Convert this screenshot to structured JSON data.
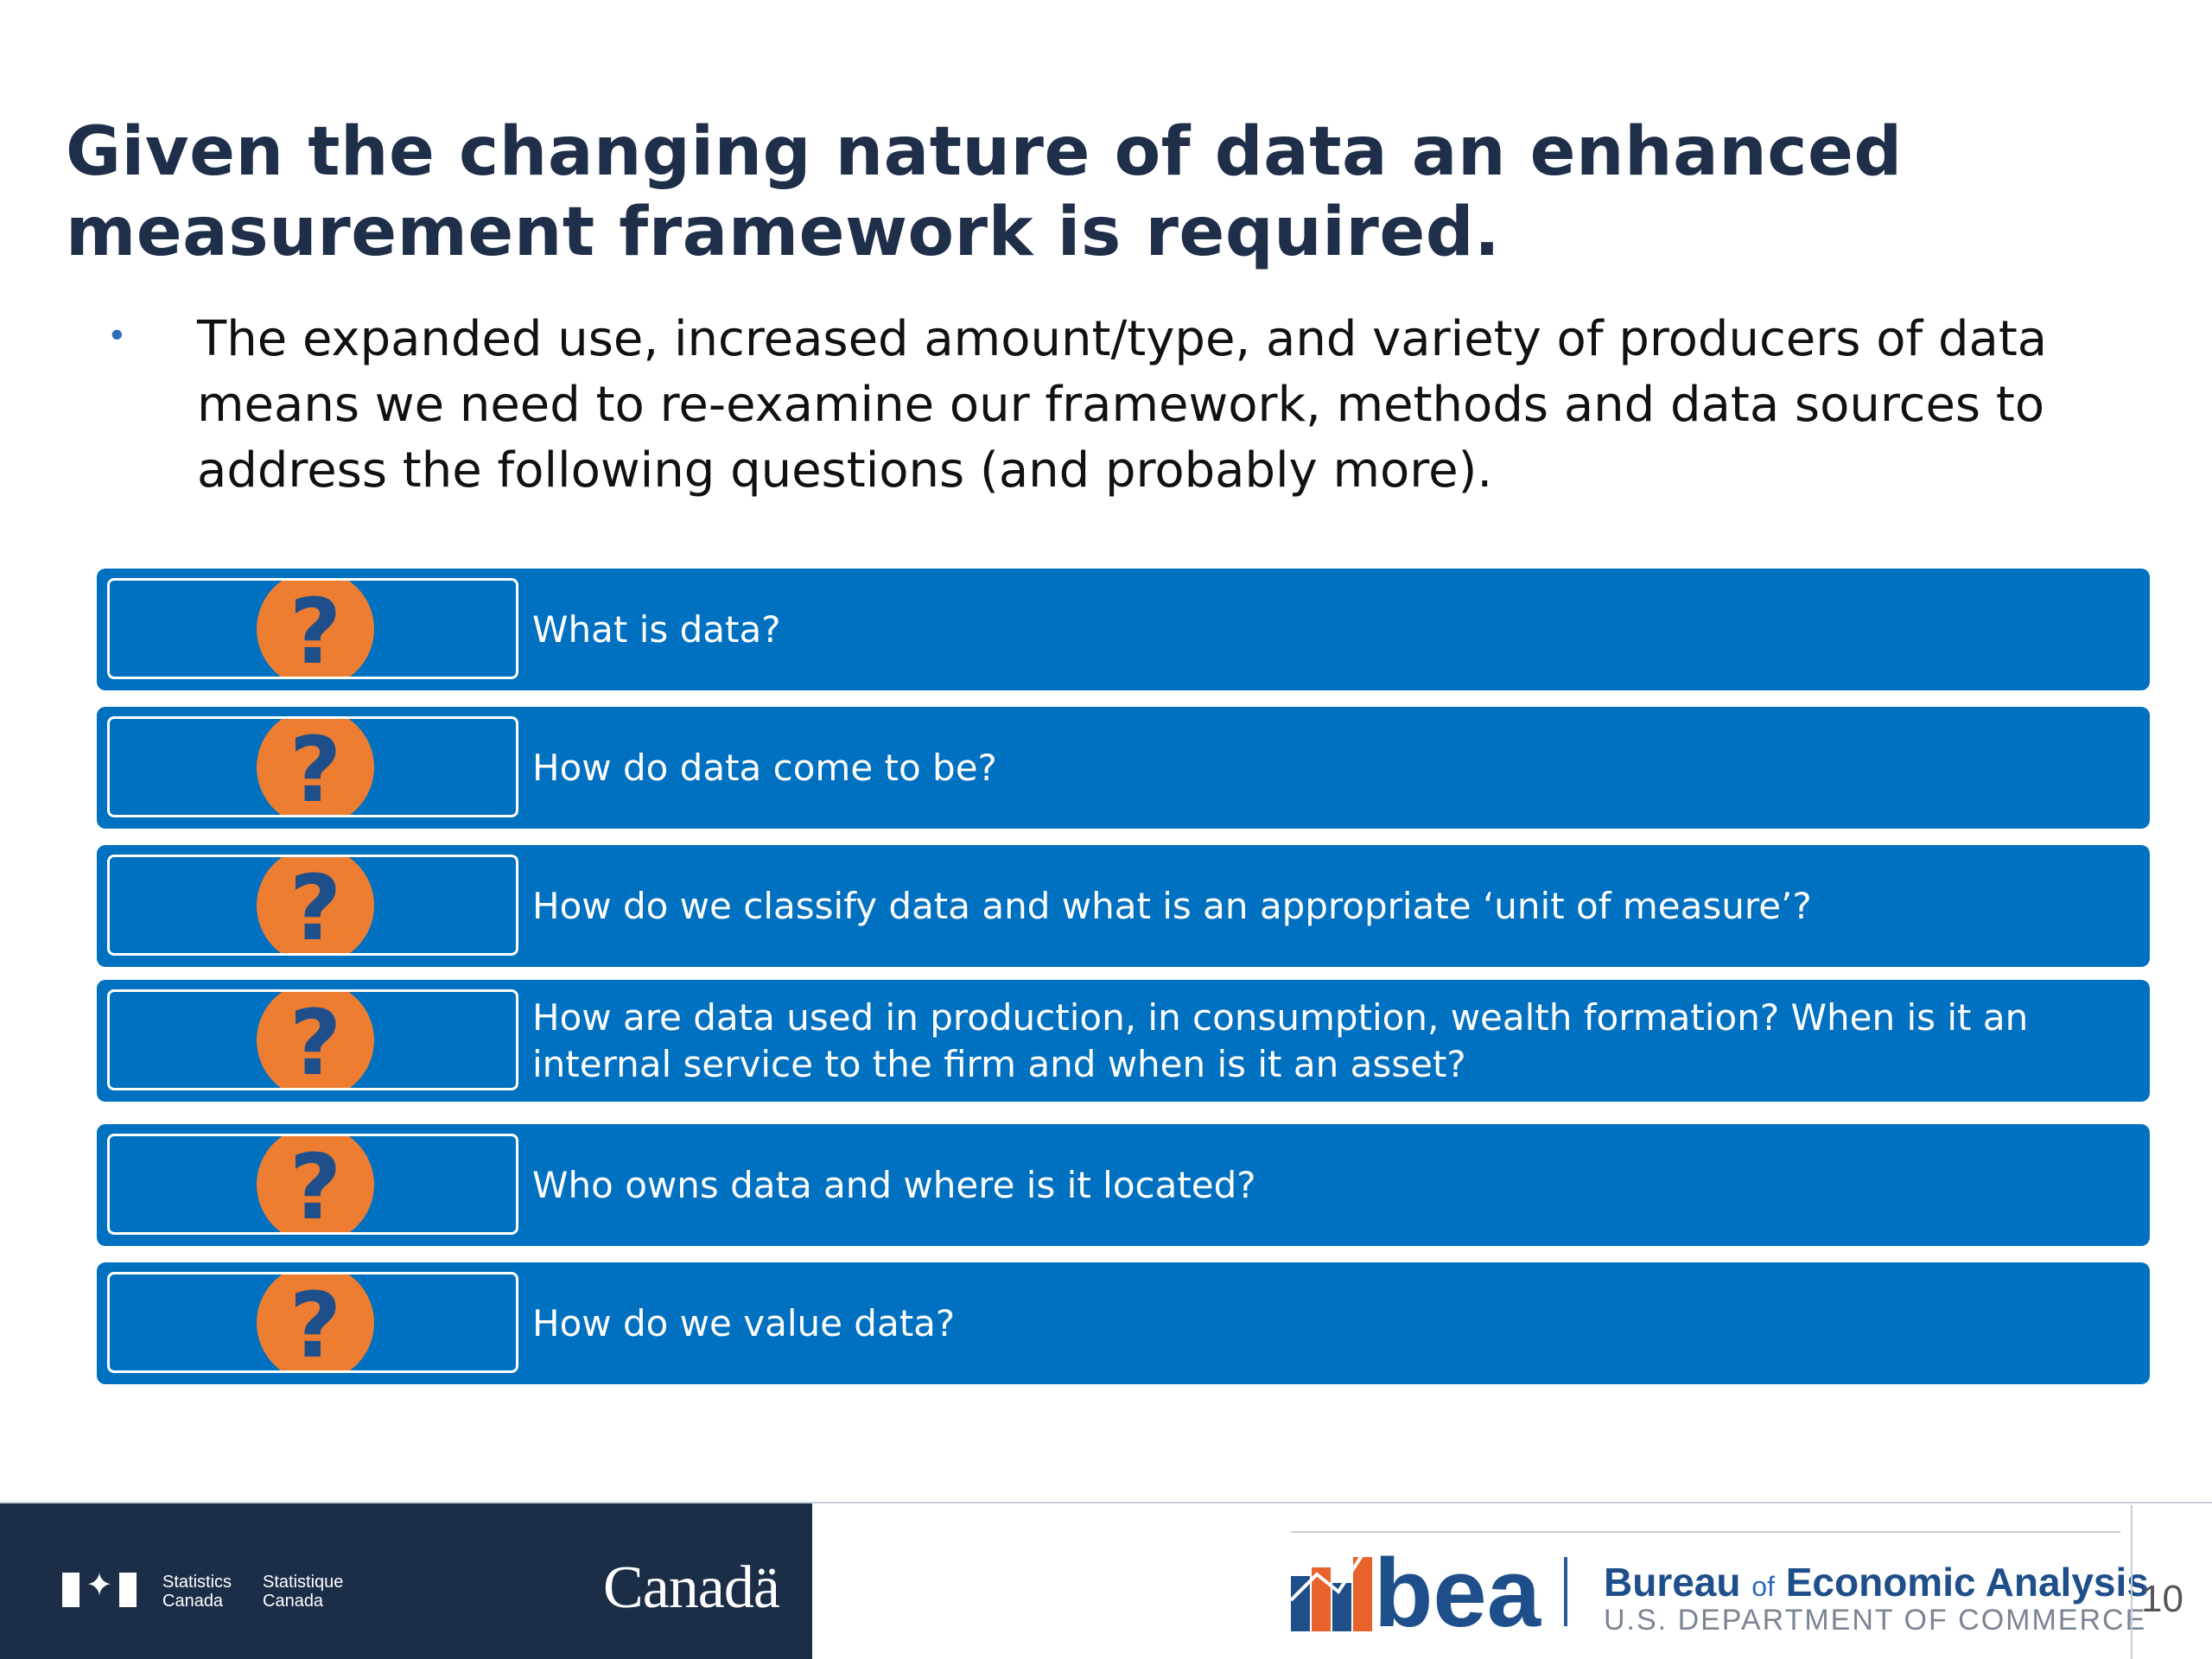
{
  "title_lines": [
    "Given the changing nature of data an enhanced",
    "measurement framework is required."
  ],
  "bullet": {
    "marker": "•",
    "lines": [
      "The expanded use, increased amount/type, and variety of producers of data",
      "means we need to re-examine our framework, methods and data sources to",
      "address the following questions (and probably more)."
    ]
  },
  "questions": [
    {
      "icon": "question-mark-icon",
      "glyph": "?",
      "text": "What is data?"
    },
    {
      "icon": "question-mark-icon",
      "glyph": "?",
      "text": "How do data come to be?"
    },
    {
      "icon": "question-mark-icon",
      "glyph": "?",
      "text": "How do we classify data and what is an appropriate ‘unit of measure’?"
    },
    {
      "icon": "question-mark-icon",
      "glyph": "?",
      "text": "How are data used in production, in consumption, wealth formation?  When is it an internal service to the firm and when is it an asset?"
    },
    {
      "icon": "question-mark-icon",
      "glyph": "?",
      "text": "Who owns data and where is it located?"
    },
    {
      "icon": "question-mark-icon",
      "glyph": "?",
      "text": "How do we value data?"
    }
  ],
  "footer": {
    "statcan": {
      "en_line1": "Statistics",
      "en_line2": "Canada",
      "fr_line1": "Statistique",
      "fr_line2": "Canada",
      "wordmark": "Canadä"
    },
    "bea": {
      "mark": "bea",
      "name_part1": "Bureau ",
      "name_of": "of",
      "name_part2": " Economic Analysis",
      "dept": "U.S. DEPARTMENT OF COMMERCE"
    },
    "page_number": "10"
  },
  "colors": {
    "title": "#1f2f4a",
    "band": "#0070c0",
    "question_circle": "#ed7d31",
    "question_glyph": "#1f4f8a",
    "footer_dark": "#1b2d47"
  }
}
